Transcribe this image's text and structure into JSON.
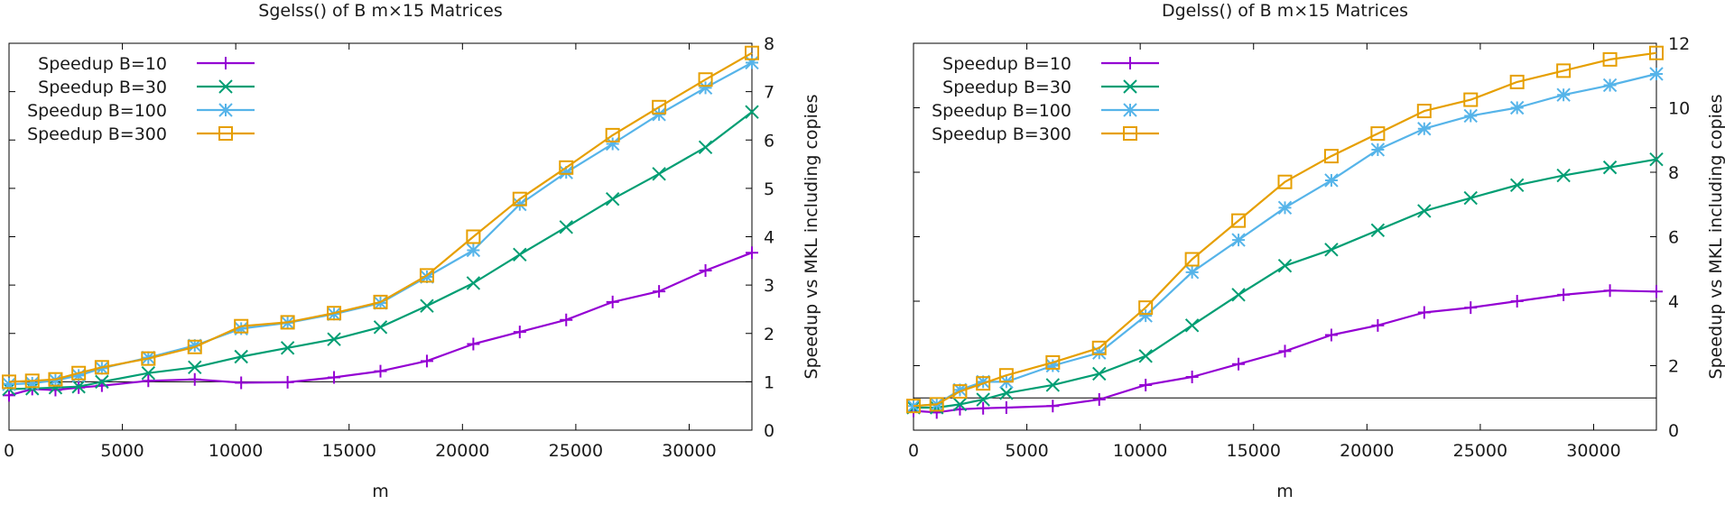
{
  "chart_data": [
    {
      "type": "line",
      "title": "Sgelss() of B m×15 Matrices",
      "xlabel": "m",
      "ylabel": "Speedup vs MKL including copies",
      "xlim": [
        0,
        32768
      ],
      "ylim": [
        0,
        8
      ],
      "xticks": [
        0,
        5000,
        10000,
        15000,
        20000,
        25000,
        30000
      ],
      "yticks": [
        0,
        1,
        2,
        3,
        4,
        5,
        6,
        7,
        8
      ],
      "reference_line": 1,
      "legend_position": "top-left",
      "x": [
        0,
        1024,
        2048,
        3072,
        4096,
        6144,
        8192,
        10240,
        12288,
        14336,
        16384,
        18432,
        20480,
        22528,
        24576,
        26624,
        28672,
        30720,
        32768
      ],
      "series": [
        {
          "name": "Speedup B=10",
          "color": "#9400d3",
          "marker": "plus",
          "values": [
            0.72,
            0.85,
            0.83,
            0.88,
            0.92,
            1.02,
            1.05,
            0.98,
            0.99,
            1.09,
            1.22,
            1.43,
            1.78,
            2.03,
            2.28,
            2.65,
            2.87,
            3.3,
            3.67
          ]
        },
        {
          "name": "Speedup B=30",
          "color": "#009e73",
          "marker": "cross",
          "values": [
            0.85,
            0.86,
            0.88,
            0.9,
            1.0,
            1.18,
            1.3,
            1.52,
            1.7,
            1.88,
            2.13,
            2.57,
            3.04,
            3.63,
            4.2,
            4.78,
            5.3,
            5.85,
            6.58
          ]
        },
        {
          "name": "Speedup B=100",
          "color": "#56b4e9",
          "marker": "star",
          "values": [
            0.95,
            0.97,
            1.03,
            1.13,
            1.28,
            1.5,
            1.75,
            2.1,
            2.22,
            2.4,
            2.63,
            3.17,
            3.72,
            4.67,
            5.33,
            5.92,
            6.53,
            7.08,
            7.6
          ]
        },
        {
          "name": "Speedup B=300",
          "color": "#e69f00",
          "marker": "square",
          "values": [
            1.0,
            1.02,
            1.05,
            1.18,
            1.3,
            1.48,
            1.72,
            2.15,
            2.23,
            2.42,
            2.65,
            3.2,
            4.0,
            4.78,
            5.43,
            6.1,
            6.68,
            7.25,
            7.8
          ]
        }
      ]
    },
    {
      "type": "line",
      "title": "Dgelss() of B m×15 Matrices",
      "xlabel": "m",
      "ylabel": "Speedup vs MKL including copies",
      "xlim": [
        0,
        32768
      ],
      "ylim": [
        0,
        12
      ],
      "xticks": [
        0,
        5000,
        10000,
        15000,
        20000,
        25000,
        30000
      ],
      "yticks": [
        0,
        2,
        4,
        6,
        8,
        10,
        12
      ],
      "reference_line": 1,
      "legend_position": "top-left",
      "x": [
        0,
        1024,
        2048,
        3072,
        4096,
        6144,
        8192,
        10240,
        12288,
        14336,
        16384,
        18432,
        20480,
        22528,
        24576,
        26624,
        28672,
        30720,
        32768
      ],
      "series": [
        {
          "name": "Speedup B=10",
          "color": "#9400d3",
          "marker": "plus",
          "values": [
            0.6,
            0.55,
            0.65,
            0.68,
            0.7,
            0.75,
            0.95,
            1.4,
            1.65,
            2.05,
            2.45,
            2.95,
            3.25,
            3.65,
            3.8,
            4.0,
            4.2,
            4.33,
            4.3
          ]
        },
        {
          "name": "Speedup B=30",
          "color": "#009e73",
          "marker": "cross",
          "values": [
            0.7,
            0.7,
            0.8,
            0.95,
            1.15,
            1.4,
            1.75,
            2.3,
            3.25,
            4.2,
            5.1,
            5.6,
            6.2,
            6.8,
            7.2,
            7.6,
            7.9,
            8.15,
            8.4
          ]
        },
        {
          "name": "Speedup B=100",
          "color": "#56b4e9",
          "marker": "star",
          "values": [
            0.75,
            0.8,
            1.25,
            1.5,
            1.5,
            2.0,
            2.4,
            3.55,
            4.9,
            5.9,
            6.9,
            7.75,
            8.7,
            9.35,
            9.75,
            10.0,
            10.4,
            10.7,
            11.05
          ]
        },
        {
          "name": "Speedup B=300",
          "color": "#e69f00",
          "marker": "square",
          "values": [
            0.75,
            0.8,
            1.2,
            1.45,
            1.7,
            2.1,
            2.55,
            3.8,
            5.3,
            6.5,
            7.7,
            8.5,
            9.2,
            9.9,
            10.25,
            10.8,
            11.15,
            11.5,
            11.7
          ]
        }
      ]
    }
  ]
}
